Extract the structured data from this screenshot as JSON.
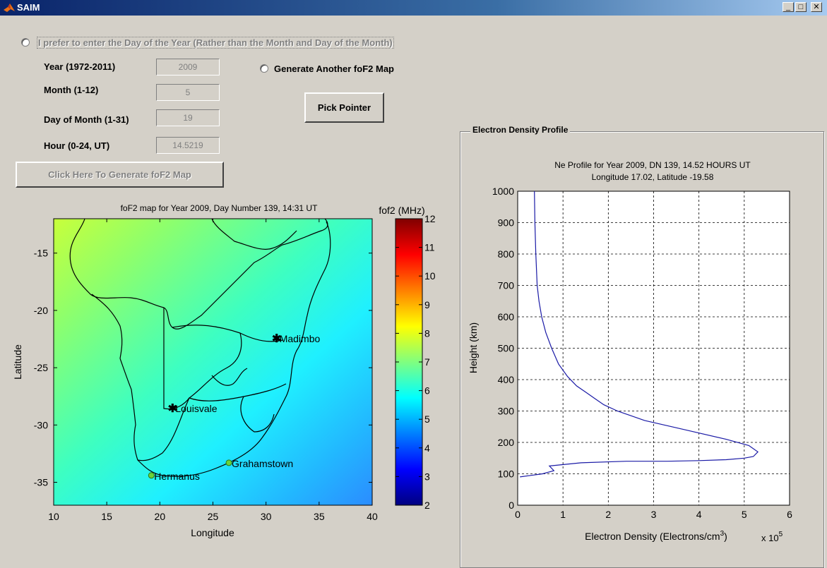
{
  "window": {
    "title": "SAIM",
    "minimize_glyph": "_",
    "maximize_glyph": "□",
    "close_glyph": "✕"
  },
  "controls": {
    "day_of_year_option": "I prefer to enter the Day of the Year (Rather than the Month and Day of the Month)",
    "year_label": "Year (1972-2011)",
    "year_value": "2009",
    "month_label": "Month (1-12)",
    "month_value": "5",
    "day_label": "Day of Month (1-31)",
    "day_value": "19",
    "hour_label": "Hour (0-24, UT)",
    "hour_value": "14.5219",
    "generate_another_option": "Generate Another foF2 Map",
    "pick_pointer_button": "Pick Pointer",
    "generate_map_button": "Click Here To Generate foF2 Map"
  },
  "map_panel": {
    "title": "foF2 map for Year 2009, Day Number 139, 14:31 UT",
    "xlabel": "Longitude",
    "ylabel": "Latitude",
    "colorbar_label": "fof2 (MHz)",
    "colorbar_ticks": [
      "12",
      "11",
      "10",
      "9",
      "8",
      "7",
      "6",
      "5",
      "4",
      "3",
      "2"
    ],
    "markers": [
      {
        "name": "Madimbo",
        "lon": 31.0,
        "lat": -22.4
      },
      {
        "name": "Louisvale",
        "lon": 21.2,
        "lat": -28.5
      },
      {
        "name": "Grahamstown",
        "lon": 26.5,
        "lat": -33.3
      },
      {
        "name": "Hermanus",
        "lon": 19.2,
        "lat": -34.4
      }
    ]
  },
  "profile_panel": {
    "frame_title": "Electron Density Profile",
    "title_line1": "Ne Profile for Year 2009, DN 139, 14.52 HOURS UT",
    "title_line2": "Longitude 17.02, Latitude -19.58",
    "xlabel": "Electron Density (Electrons/cm",
    "xlabel_sup": "3",
    "xlabel_end": ")",
    "exponent_label": "x 10",
    "exponent_sup": "5"
  },
  "chart_data": [
    {
      "type": "heatmap",
      "title": "foF2 map for Year 2009, Day Number 139, 14:31 UT",
      "xlabel": "Longitude",
      "ylabel": "Latitude",
      "xlim": [
        10,
        40
      ],
      "ylim": [
        -37,
        -12
      ],
      "x_ticks": [
        "10",
        "15",
        "20",
        "25",
        "30",
        "35",
        "40"
      ],
      "y_ticks": [
        "-15",
        "-20",
        "-25",
        "-30",
        "-35"
      ],
      "colorbar": {
        "label": "fof2 (MHz)",
        "range": [
          2,
          12
        ]
      },
      "values_range_shown": [
        5.2,
        8.0
      ]
    },
    {
      "type": "line",
      "title": "Ne Profile for Year 2009, DN 139, 14.52 HOURS UT",
      "xlabel": "Electron Density (Electrons/cm3)",
      "ylabel": "Height (km)",
      "x_multiplier": "x 10^5",
      "xlim": [
        0,
        6
      ],
      "ylim": [
        0,
        1000
      ],
      "x_ticks": [
        "0",
        "1",
        "2",
        "3",
        "4",
        "5",
        "6"
      ],
      "y_ticks": [
        "0",
        "100",
        "200",
        "300",
        "400",
        "500",
        "600",
        "700",
        "800",
        "900",
        "1000"
      ],
      "grid": true,
      "series": [
        {
          "x": [
            0.05,
            0.3,
            0.55,
            0.8,
            0.7,
            1.4,
            2.4,
            3.3,
            4.0,
            4.6,
            5.0,
            5.2,
            5.3,
            5.1,
            4.6,
            3.7,
            2.8,
            2.2,
            1.9,
            1.7,
            1.5,
            1.3,
            1.1,
            0.9,
            0.75,
            0.62,
            0.53,
            0.47,
            0.43,
            0.4,
            0.38,
            0.37
          ],
          "y": [
            90,
            95,
            100,
            110,
            125,
            135,
            140,
            140,
            142,
            145,
            150,
            155,
            170,
            190,
            210,
            240,
            270,
            300,
            320,
            340,
            360,
            380,
            410,
            450,
            500,
            550,
            600,
            650,
            700,
            800,
            900,
            1000
          ]
        }
      ]
    }
  ]
}
